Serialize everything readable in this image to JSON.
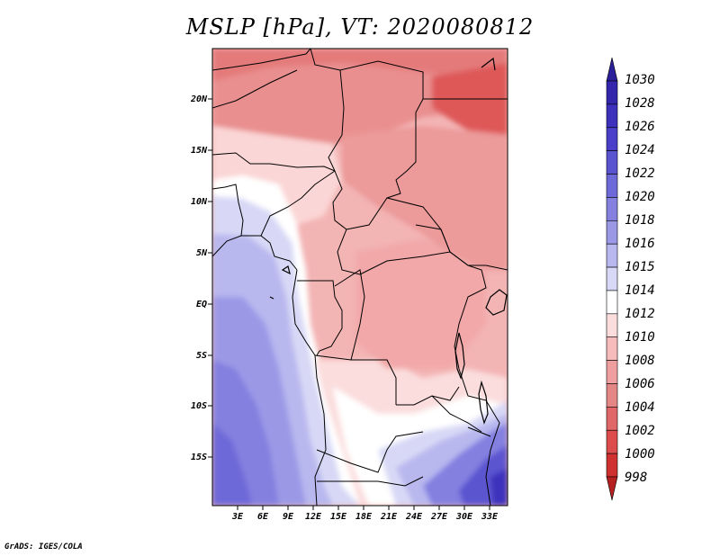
{
  "title": "MSLP [hPa], VT: 2020080812",
  "credit": "GrADS: IGES/COLA",
  "lat_labels": [
    "20N",
    "15N",
    "10N",
    "5N",
    "EQ",
    "5S",
    "10S",
    "15S"
  ],
  "lon_labels": [
    "3E",
    "6E",
    "9E",
    "12E",
    "15E",
    "18E",
    "21E",
    "24E",
    "27E",
    "30E",
    "33E"
  ],
  "colorbar_labels": [
    "1030",
    "1028",
    "1026",
    "1024",
    "1022",
    "1020",
    "1018",
    "1016",
    "1015",
    "1014",
    "1012",
    "1010",
    "1008",
    "1006",
    "1004",
    "1002",
    "1000",
    "998"
  ],
  "colors": {
    "scale": [
      "#2b1f9a",
      "#3326ac",
      "#3c30bc",
      "#4a3fc8",
      "#5b54d0",
      "#6e69d8",
      "#8380e0",
      "#9b99e6",
      "#b8b8ef",
      "#d8d8f6",
      "#ffffff",
      "#fbdddd",
      "#f6bcbc",
      "#ef9f9f",
      "#e58686",
      "#e06868",
      "#dc4c4c",
      "#cf3030",
      "#b52020"
    ]
  }
}
